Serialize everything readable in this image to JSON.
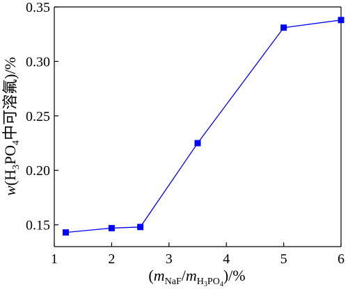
{
  "chart_data": {
    "type": "line",
    "title": "",
    "xlabel": "(m_NaF/m_H3PO4)/%",
    "ylabel": "w(H3PO4中可溶氟)/%",
    "xlabel_parts": {
      "open": "(",
      "m1": "m",
      "sub1": "NaF",
      "slash": "/",
      "m2": "m",
      "sub2a": "H",
      "sub2b": "3",
      "sub2c": "PO",
      "sub2d": "4",
      "close": ")/%"
    },
    "ylabel_parts": {
      "w": "w",
      "open": "(H",
      "sub3": "3",
      "po": "PO",
      "sub4": "4",
      "chinese": "中可溶氟",
      "close": ")/%"
    },
    "xlim": [
      1,
      6
    ],
    "ylim": [
      0.13,
      0.35
    ],
    "xticks": [
      1,
      2,
      3,
      4,
      5,
      6
    ],
    "xtick_labels": [
      "1",
      "2",
      "3",
      "4",
      "5",
      "6"
    ],
    "yticks": [
      0.15,
      0.2,
      0.25,
      0.3,
      0.35
    ],
    "ytick_labels": [
      "0.15",
      "0.20",
      "0.25",
      "0.30",
      "0.35"
    ],
    "grid": false,
    "series": [
      {
        "color": "#0000ff",
        "marker": "square",
        "x": [
          1.2,
          2.0,
          2.5,
          3.5,
          5.0,
          6.0
        ],
        "y": [
          0.143,
          0.147,
          0.148,
          0.225,
          0.331,
          0.338
        ]
      }
    ]
  }
}
